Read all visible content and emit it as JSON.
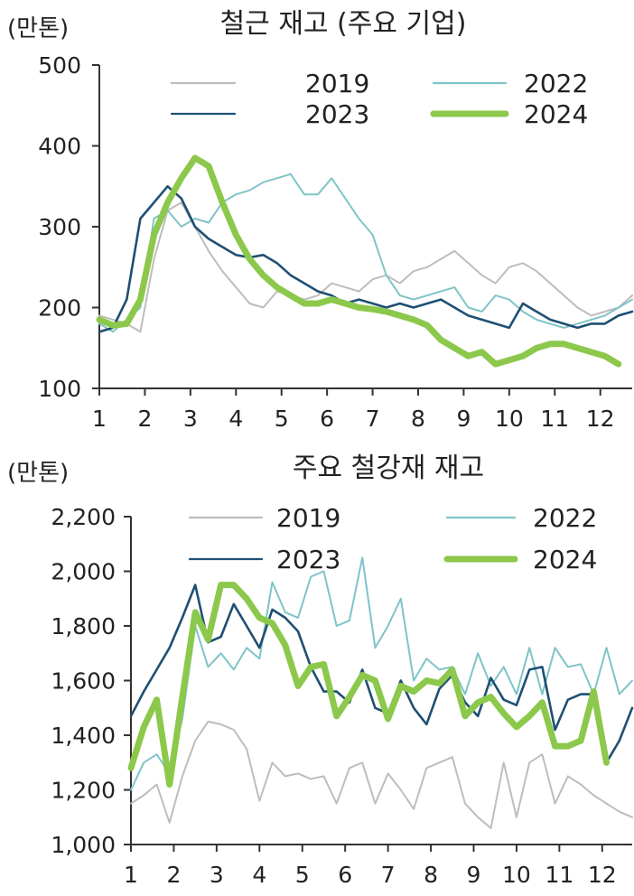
{
  "colors": {
    "2019": "#bdbdbd",
    "2022": "#7fc4c7",
    "2023": "#1f4f73",
    "2024": "#8cc84b",
    "axis": "#333333"
  },
  "chart_data": [
    {
      "type": "line",
      "title": "철근 재고 (주요 기업)",
      "unit": "(만톤)",
      "ylim": [
        100,
        500
      ],
      "yticks": [
        "100",
        "200",
        "300",
        "400",
        "500"
      ],
      "ytick_values": [
        100,
        200,
        300,
        400,
        500
      ],
      "xlim": [
        1,
        12.7
      ],
      "xticks": [
        "1",
        "2",
        "3",
        "4",
        "5",
        "6",
        "7",
        "8",
        "9",
        "10",
        "11",
        "12"
      ],
      "legend": [
        "2019",
        "2022",
        "2023",
        "2024"
      ],
      "series": [
        {
          "name": "2019",
          "style": "thin",
          "x": [
            1,
            1.3,
            1.6,
            1.9,
            2.2,
            2.5,
            2.8,
            3.1,
            3.4,
            3.7,
            4.0,
            4.3,
            4.6,
            4.9,
            5.2,
            5.5,
            5.8,
            6.1,
            6.4,
            6.7,
            7.0,
            7.3,
            7.6,
            7.9,
            8.2,
            8.5,
            8.8,
            9.1,
            9.4,
            9.7,
            10.0,
            10.3,
            10.6,
            10.9,
            11.2,
            11.5,
            11.8,
            12.1,
            12.4,
            12.7
          ],
          "values": [
            190,
            185,
            180,
            170,
            260,
            320,
            330,
            300,
            270,
            245,
            225,
            205,
            200,
            220,
            215,
            210,
            215,
            230,
            225,
            220,
            235,
            240,
            230,
            245,
            250,
            260,
            270,
            255,
            240,
            230,
            250,
            255,
            245,
            230,
            215,
            200,
            190,
            195,
            200,
            215
          ]
        },
        {
          "name": "2022",
          "style": "thin",
          "x": [
            1,
            1.3,
            1.6,
            1.9,
            2.2,
            2.5,
            2.8,
            3.1,
            3.4,
            3.7,
            4.0,
            4.3,
            4.6,
            4.9,
            5.2,
            5.5,
            5.8,
            6.1,
            6.4,
            6.7,
            7.0,
            7.3,
            7.6,
            7.9,
            8.2,
            8.5,
            8.8,
            9.1,
            9.4,
            9.7,
            10.0,
            10.3,
            10.6,
            10.9,
            11.2,
            11.5,
            11.8,
            12.1,
            12.4,
            12.7
          ],
          "values": [
            180,
            170,
            185,
            200,
            310,
            320,
            300,
            310,
            305,
            330,
            340,
            345,
            355,
            360,
            365,
            340,
            340,
            360,
            335,
            310,
            290,
            240,
            215,
            210,
            215,
            220,
            225,
            200,
            195,
            215,
            210,
            195,
            185,
            180,
            175,
            180,
            185,
            190,
            200,
            210
          ]
        },
        {
          "name": "2023",
          "style": "thin",
          "x": [
            1,
            1.3,
            1.6,
            1.9,
            2.2,
            2.5,
            2.8,
            3.1,
            3.4,
            3.7,
            4.0,
            4.3,
            4.6,
            4.9,
            5.2,
            5.5,
            5.8,
            6.1,
            6.4,
            6.7,
            7.0,
            7.3,
            7.6,
            7.9,
            8.2,
            8.5,
            8.8,
            9.1,
            9.4,
            9.7,
            10.0,
            10.3,
            10.6,
            10.9,
            11.2,
            11.5,
            11.8,
            12.1,
            12.4,
            12.7
          ],
          "values": [
            170,
            175,
            210,
            310,
            330,
            350,
            335,
            300,
            285,
            275,
            265,
            262,
            265,
            255,
            240,
            230,
            220,
            215,
            205,
            210,
            205,
            200,
            205,
            200,
            205,
            210,
            200,
            190,
            185,
            180,
            175,
            205,
            195,
            185,
            180,
            175,
            180,
            180,
            190,
            195
          ]
        },
        {
          "name": "2024",
          "style": "thick",
          "x": [
            1,
            1.3,
            1.6,
            1.9,
            2.2,
            2.5,
            2.8,
            3.1,
            3.4,
            3.7,
            4.0,
            4.3,
            4.6,
            4.9,
            5.2,
            5.5,
            5.8,
            6.1,
            6.4,
            6.7,
            7.0,
            7.3,
            7.6,
            7.9,
            8.2,
            8.5,
            8.8,
            9.1,
            9.4,
            9.7,
            10.0,
            10.3,
            10.6,
            10.9,
            11.2,
            11.5,
            11.8,
            12.1,
            12.4
          ],
          "values": [
            185,
            178,
            180,
            210,
            290,
            330,
            360,
            385,
            375,
            330,
            290,
            260,
            240,
            225,
            215,
            205,
            205,
            210,
            205,
            200,
            198,
            195,
            190,
            185,
            178,
            160,
            150,
            140,
            145,
            130,
            135,
            140,
            150,
            155,
            155,
            150,
            145,
            140,
            130
          ]
        }
      ]
    },
    {
      "type": "line",
      "title": "주요 철강재 재고",
      "unit": "(만톤)",
      "ylim": [
        1000,
        2200
      ],
      "yticks": [
        "1,000",
        "1,200",
        "1,400",
        "1,600",
        "1,800",
        "2,000",
        "2,200"
      ],
      "ytick_values": [
        1000,
        1200,
        1400,
        1600,
        1800,
        2000,
        2200
      ],
      "xlim": [
        1,
        12.7
      ],
      "xticks": [
        "1",
        "2",
        "3",
        "4",
        "5",
        "6",
        "7",
        "8",
        "9",
        "10",
        "11",
        "12"
      ],
      "legend": [
        "2019",
        "2022",
        "2023",
        "2024"
      ],
      "series": [
        {
          "name": "2019",
          "style": "thin",
          "x": [
            1,
            1.3,
            1.6,
            1.9,
            2.2,
            2.5,
            2.8,
            3.1,
            3.4,
            3.7,
            4.0,
            4.3,
            4.6,
            4.9,
            5.2,
            5.5,
            5.8,
            6.1,
            6.4,
            6.7,
            7.0,
            7.3,
            7.6,
            7.9,
            8.2,
            8.5,
            8.8,
            9.1,
            9.4,
            9.7,
            10.0,
            10.3,
            10.6,
            10.9,
            11.2,
            11.5,
            11.8,
            12.1,
            12.4,
            12.7
          ],
          "values": [
            1150,
            1180,
            1220,
            1080,
            1250,
            1380,
            1450,
            1440,
            1420,
            1350,
            1160,
            1300,
            1250,
            1260,
            1240,
            1250,
            1150,
            1280,
            1300,
            1150,
            1260,
            1200,
            1130,
            1280,
            1300,
            1320,
            1150,
            1100,
            1060,
            1300,
            1100,
            1300,
            1330,
            1150,
            1250,
            1220,
            1180,
            1150,
            1120,
            1100
          ]
        },
        {
          "name": "2022",
          "style": "thin",
          "x": [
            1,
            1.3,
            1.6,
            1.9,
            2.2,
            2.5,
            2.8,
            3.1,
            3.4,
            3.7,
            4.0,
            4.3,
            4.6,
            4.9,
            5.2,
            5.5,
            5.8,
            6.1,
            6.4,
            6.7,
            7.0,
            7.3,
            7.6,
            7.9,
            8.2,
            8.5,
            8.8,
            9.1,
            9.4,
            9.7,
            10.0,
            10.3,
            10.6,
            10.9,
            11.2,
            11.5,
            11.8,
            12.1,
            12.4,
            12.7
          ],
          "values": [
            1200,
            1300,
            1330,
            1260,
            1460,
            1800,
            1650,
            1700,
            1640,
            1720,
            1680,
            1960,
            1850,
            1830,
            1980,
            2000,
            1800,
            1820,
            2050,
            1720,
            1800,
            1900,
            1600,
            1680,
            1640,
            1650,
            1550,
            1700,
            1580,
            1650,
            1550,
            1720,
            1550,
            1720,
            1650,
            1660,
            1550,
            1720,
            1550,
            1600
          ]
        },
        {
          "name": "2023",
          "style": "thin",
          "x": [
            1,
            1.3,
            1.6,
            1.9,
            2.2,
            2.5,
            2.8,
            3.1,
            3.4,
            3.7,
            4.0,
            4.3,
            4.6,
            4.9,
            5.2,
            5.5,
            5.8,
            6.1,
            6.4,
            6.7,
            7.0,
            7.3,
            7.6,
            7.9,
            8.2,
            8.5,
            8.8,
            9.1,
            9.4,
            9.7,
            10.0,
            10.3,
            10.6,
            10.9,
            11.2,
            11.5,
            11.8,
            12.1,
            12.4,
            12.7
          ],
          "values": [
            1470,
            1560,
            1640,
            1720,
            1830,
            1950,
            1740,
            1760,
            1880,
            1800,
            1720,
            1860,
            1830,
            1780,
            1650,
            1560,
            1560,
            1520,
            1640,
            1500,
            1480,
            1600,
            1500,
            1440,
            1570,
            1620,
            1520,
            1470,
            1610,
            1530,
            1510,
            1640,
            1650,
            1420,
            1530,
            1550,
            1550,
            1300,
            1380,
            1500
          ]
        },
        {
          "name": "2024",
          "style": "thick",
          "x": [
            1,
            1.3,
            1.6,
            1.9,
            2.2,
            2.5,
            2.8,
            3.1,
            3.4,
            3.7,
            4.0,
            4.3,
            4.6,
            4.9,
            5.2,
            5.5,
            5.8,
            6.1,
            6.4,
            6.7,
            7.0,
            7.3,
            7.6,
            7.9,
            8.2,
            8.5,
            8.8,
            9.1,
            9.4,
            9.7,
            10.0,
            10.3,
            10.6,
            10.9,
            11.2,
            11.5,
            11.8,
            12.1
          ],
          "values": [
            1280,
            1430,
            1530,
            1220,
            1540,
            1850,
            1750,
            1950,
            1950,
            1900,
            1830,
            1810,
            1730,
            1580,
            1650,
            1660,
            1470,
            1540,
            1620,
            1600,
            1460,
            1580,
            1560,
            1600,
            1590,
            1640,
            1470,
            1520,
            1540,
            1480,
            1430,
            1470,
            1520,
            1360,
            1360,
            1380,
            1560,
            1300
          ]
        }
      ]
    }
  ]
}
